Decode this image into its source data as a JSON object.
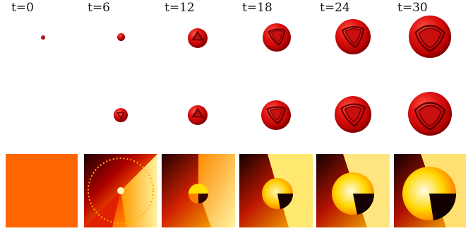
{
  "time_labels": [
    "t=0",
    "t=6",
    "t=12",
    "t=18",
    "t=24",
    "t=30"
  ],
  "colors": {
    "sphere_red": "#d81010",
    "background": "#ffffff",
    "panel_uniform": "#ff6600"
  }
}
